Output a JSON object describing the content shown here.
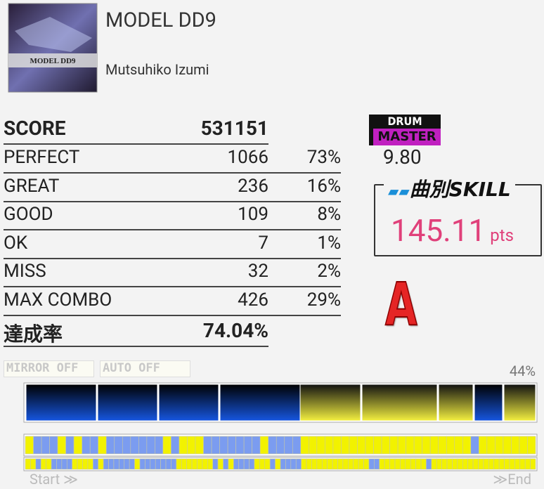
{
  "song": {
    "title": "MODEL DD9",
    "artist": "Mutsuhiko Izumi",
    "jacket_text": "MODEL DD9"
  },
  "results": {
    "score": {
      "label": "SCORE",
      "value": "531151"
    },
    "rows": [
      {
        "label": "PERFECT",
        "count": "1066",
        "percent": "73%"
      },
      {
        "label": "GREAT",
        "count": "236",
        "percent": "16%"
      },
      {
        "label": "GOOD",
        "count": "109",
        "percent": "8%"
      },
      {
        "label": "OK",
        "count": "7",
        "percent": "1%"
      },
      {
        "label": "MISS",
        "count": "32",
        "percent": "2%"
      },
      {
        "label": "MAX COMBO",
        "count": "426",
        "percent": "29%"
      }
    ],
    "achievement": {
      "label": "達成率",
      "value": "74.04%"
    }
  },
  "difficulty": {
    "instrument": "DRUM",
    "level_name": "MASTER",
    "level": "9.80"
  },
  "skill": {
    "label": "曲別SKILL",
    "value": "145.11",
    "unit": "pts"
  },
  "rank": "A",
  "options": [
    "MIRROR OFF",
    "AUTO OFF"
  ],
  "progress": {
    "percent": "44%",
    "start": "Start ≫",
    "end": "≫End"
  }
}
